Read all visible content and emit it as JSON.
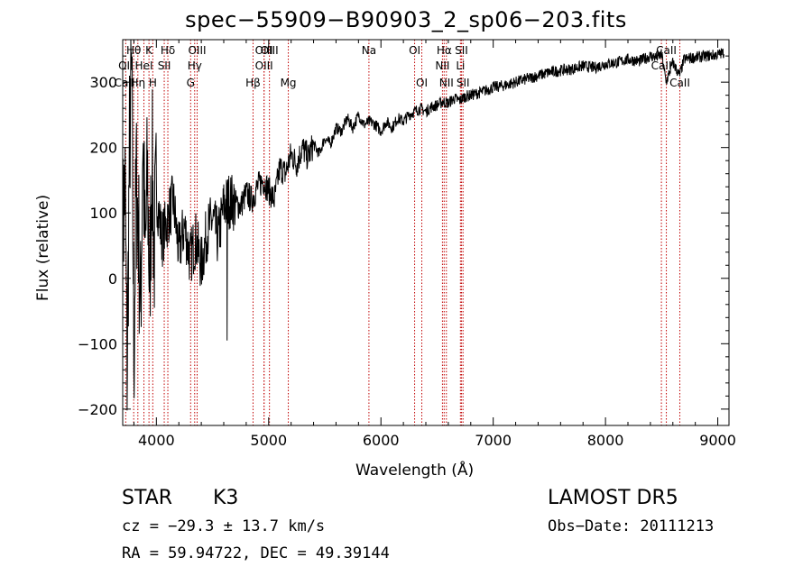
{
  "chart_data": {
    "type": "line",
    "title": "spec−55909−B90903_2_sp06−203.fits",
    "xlabel": "Wavelength (Å)",
    "ylabel": "Flux (relative)",
    "xlim": [
      3700,
      9100
    ],
    "ylim": [
      -225,
      365
    ],
    "x_ticks": [
      4000,
      5000,
      6000,
      7000,
      8000,
      9000
    ],
    "x_tick_labels": [
      "4000",
      "5000",
      "6000",
      "7000",
      "8000",
      "9000"
    ],
    "y_ticks": [
      -200,
      -100,
      0,
      100,
      200,
      300
    ],
    "y_tick_labels": [
      "−200",
      "−100",
      "0",
      "100",
      "200",
      "300"
    ],
    "grid": false,
    "series": [
      {
        "x": [
          3700,
          3720,
          3740,
          3760,
          3780,
          3800,
          3820,
          3840,
          3860,
          3880,
          3900,
          3920,
          3940,
          3960,
          3980,
          4000,
          4050,
          4100,
          4150,
          4200,
          4250,
          4300,
          4350,
          4400,
          4450,
          4500,
          4550,
          4600,
          4650,
          4700,
          4750,
          4800,
          4850,
          4900,
          4950,
          5000,
          5050,
          5100,
          5150,
          5200,
          5250,
          5300,
          5350,
          5400,
          5450,
          5500,
          5550,
          5600,
          5650,
          5700,
          5750,
          5800,
          5850,
          5900,
          5950,
          6000,
          6050,
          6100,
          6150,
          6200,
          6250,
          6300,
          6350,
          6400,
          6450,
          6500,
          6550,
          6600,
          6650,
          6700,
          6750,
          6800,
          6900,
          7000,
          7100,
          7200,
          7300,
          7400,
          7500,
          7600,
          7700,
          7800,
          7900,
          8000,
          8100,
          8200,
          8300,
          8400,
          8450,
          8500,
          8540,
          8600,
          8660,
          8700,
          8800,
          8900,
          9000,
          9050
        ],
        "y": [
          60,
          150,
          -150,
          200,
          320,
          -120,
          150,
          80,
          -60,
          230,
          20,
          160,
          -20,
          190,
          40,
          130,
          60,
          90,
          120,
          40,
          80,
          30,
          60,
          20,
          70,
          90,
          60,
          110,
          120,
          115,
          110,
          130,
          120,
          140,
          150,
          135,
          120,
          170,
          160,
          190,
          175,
          200,
          185,
          205,
          190,
          215,
          205,
          230,
          225,
          245,
          230,
          250,
          235,
          240,
          235,
          225,
          240,
          230,
          245,
          240,
          250,
          255,
          260,
          255,
          262,
          265,
          270,
          268,
          275,
          272,
          278,
          280,
          285,
          292,
          295,
          300,
          305,
          310,
          315,
          318,
          320,
          325,
          322,
          328,
          330,
          335,
          332,
          340,
          338,
          342,
          300,
          330,
          310,
          335,
          338,
          340,
          342,
          345
        ]
      }
    ],
    "lines": [
      {
        "label": "Hθ",
        "x": 3798
      },
      {
        "label": "K",
        "x": 3934
      },
      {
        "label": "Hδ",
        "x": 4102
      },
      {
        "label": "OIII",
        "x": 4363
      },
      {
        "label": "OIII",
        "x": 4959
      },
      {
        "label": "OIII",
        "x": 5007
      },
      {
        "label": "Na",
        "x": 5893
      },
      {
        "label": "OI",
        "x": 6300
      },
      {
        "label": "Hα",
        "x": 6563
      },
      {
        "label": "SII",
        "x": 6717
      },
      {
        "label": "CaII",
        "x": 8542
      },
      {
        "label": "OII",
        "x": 3727
      },
      {
        "label": "HeI",
        "x": 3889
      },
      {
        "label": "SII",
        "x": 4070
      },
      {
        "label": "Hγ",
        "x": 4341
      },
      {
        "label": "OIII",
        "x": 4959
      },
      {
        "label": "NII",
        "x": 6548
      },
      {
        "label": "Li",
        "x": 6708
      },
      {
        "label": "CaII",
        "x": 8498
      },
      {
        "label": "CaII",
        "x": 3700
      },
      {
        "label": "Hη",
        "x": 3835
      },
      {
        "label": "H",
        "x": 3968
      },
      {
        "label": "G",
        "x": 4305
      },
      {
        "label": "Hβ",
        "x": 4861
      },
      {
        "label": "Mg",
        "x": 5175
      },
      {
        "label": "OI",
        "x": 6364
      },
      {
        "label": "NII",
        "x": 6583
      },
      {
        "label": "SII",
        "x": 6731
      },
      {
        "label": "CaII",
        "x": 8662
      }
    ]
  },
  "info": {
    "class": "STAR",
    "subclass": "K3",
    "survey": "LAMOST DR5",
    "cz": "cz = −29.3 ± 13.7 km/s",
    "obs_date": "Obs−Date: 20111213",
    "coords": "RA =  59.94722, DEC =  49.39144"
  },
  "colors": {
    "axis": "#000000",
    "spectrum": "#000000",
    "line_markers": "#c00000"
  }
}
